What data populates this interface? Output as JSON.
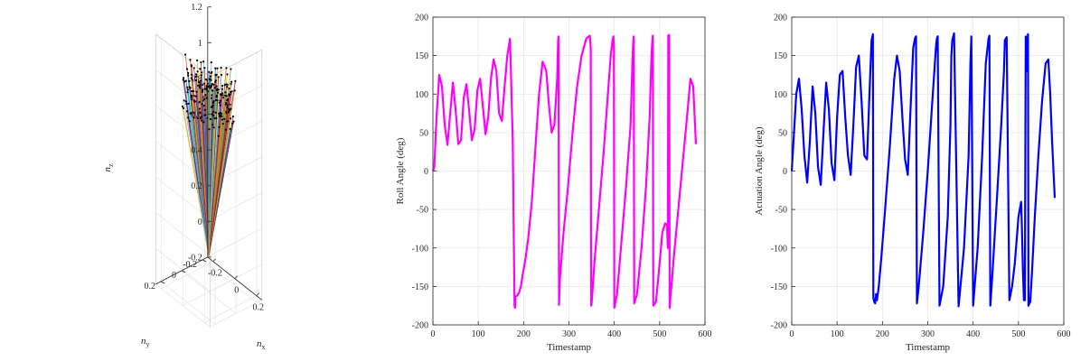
{
  "chart_data": [
    {
      "type": "line",
      "subtype": "3d-fan",
      "xlabel": "n_x",
      "ylabel": "n_y",
      "zlabel": "n_z",
      "xticks": [
        "-0.2",
        "0",
        "0.2"
      ],
      "yticks": [
        "-0.2",
        "0",
        "0.2"
      ],
      "zticks": [
        "-0.2",
        "0",
        "0.2",
        "0.4",
        "0.6",
        "0.8",
        "1",
        "1.2"
      ],
      "zlim": [
        -0.2,
        1.2
      ],
      "xlim": [
        -0.25,
        0.25
      ],
      "ylim": [
        -0.25,
        0.25
      ],
      "origin": [
        0,
        0,
        0
      ],
      "endpoint_marker": "black dot",
      "line_count": 220,
      "endpoint_z_range": [
        0.75,
        1.05
      ],
      "endpoint_xy_radius": 0.2,
      "grid": true
    },
    {
      "type": "line",
      "xlabel": "Timestamp",
      "ylabel": "Roll Angle (deg)",
      "xlim": [
        0,
        600
      ],
      "ylim": [
        -200,
        200
      ],
      "xticks": [
        "0",
        "100",
        "200",
        "300",
        "400",
        "500",
        "600"
      ],
      "yticks": [
        "-200",
        "-150",
        "-100",
        "-50",
        "0",
        "50",
        "100",
        "150",
        "200"
      ],
      "color": "#ff00ff",
      "grid": true,
      "series": [
        {
          "x": [
            0,
            3,
            8,
            14,
            20,
            26,
            32,
            38,
            44,
            50,
            56,
            62,
            68,
            74,
            80,
            86,
            92,
            98,
            104,
            110,
            116,
            122,
            128,
            134,
            140,
            146,
            152,
            158,
            164,
            170,
            176,
            180,
            181,
            182,
            186,
            190,
            194,
            198,
            204,
            210,
            218,
            226,
            234,
            242,
            250,
            256,
            262,
            268,
            274,
            276,
            277,
            278,
            280,
            288,
            298,
            308,
            318,
            328,
            338,
            346,
            348,
            349,
            350,
            356,
            366,
            376,
            386,
            392,
            396,
            398,
            399,
            400,
            406,
            416,
            426,
            436,
            440,
            442,
            443,
            444,
            450,
            460,
            470,
            478,
            482,
            484,
            485,
            486,
            492,
            500,
            506,
            512,
            516,
            518,
            519,
            520,
            521,
            522,
            523,
            524,
            526,
            530,
            538,
            546,
            554,
            562,
            568,
            574,
            580
          ],
          "y": [
            0,
            5,
            70,
            125,
            110,
            60,
            34,
            75,
            115,
            80,
            35,
            40,
            95,
            113,
            78,
            40,
            55,
            105,
            120,
            85,
            48,
            70,
            120,
            145,
            130,
            75,
            65,
            110,
            150,
            172,
            40,
            -175,
            -178,
            -163,
            -162,
            -158,
            -150,
            -135,
            -115,
            -88,
            -40,
            30,
            100,
            142,
            130,
            85,
            50,
            60,
            120,
            170,
            175,
            -174,
            -140,
            -80,
            -20,
            50,
            110,
            150,
            172,
            176,
            160,
            -175,
            -172,
            -120,
            -50,
            20,
            100,
            150,
            170,
            175,
            160,
            -178,
            -160,
            -90,
            -20,
            60,
            140,
            170,
            175,
            -172,
            -160,
            -100,
            -20,
            70,
            150,
            170,
            176,
            -175,
            -170,
            -120,
            -80,
            -68,
            -70,
            -100,
            176,
            177,
            176,
            -178,
            -172,
            -160,
            -150,
            -120,
            -70,
            -20,
            30,
            80,
            120,
            110,
            35
          ]
        }
      ]
    },
    {
      "type": "line",
      "xlabel": "Timestamp",
      "ylabel": "Actuation Angle (deg)",
      "xlim": [
        0,
        600
      ],
      "ylim": [
        -200,
        200
      ],
      "xticks": [
        "0",
        "100",
        "200",
        "300",
        "400",
        "500",
        "600"
      ],
      "yticks": [
        "-200",
        "-150",
        "-100",
        "-50",
        "0",
        "50",
        "100",
        "150",
        "200"
      ],
      "color": "#0000ff",
      "grid": true,
      "series": [
        {
          "x": [
            0,
            4,
            10,
            16,
            22,
            28,
            34,
            40,
            46,
            52,
            58,
            64,
            70,
            76,
            82,
            88,
            94,
            100,
            106,
            112,
            118,
            124,
            130,
            136,
            142,
            148,
            154,
            160,
            166,
            172,
            176,
            179,
            180,
            182,
            184,
            186,
            188,
            192,
            198,
            206,
            216,
            226,
            232,
            238,
            244,
            250,
            256,
            262,
            268,
            272,
            274,
            276,
            280,
            290,
            300,
            310,
            318,
            320,
            322,
            326,
            334,
            344,
            350,
            352,
            354,
            358,
            368,
            380,
            390,
            394,
            396,
            400,
            410,
            420,
            428,
            434,
            436,
            438,
            442,
            452,
            462,
            468,
            470,
            474,
            480,
            486,
            492,
            500,
            506,
            508,
            510,
            512,
            514,
            516,
            518,
            520,
            521,
            522,
            524,
            526,
            530,
            536,
            544,
            552,
            560,
            566,
            570,
            574,
            580
          ],
          "y": [
            0,
            40,
            100,
            120,
            80,
            20,
            -15,
            40,
            110,
            75,
            5,
            -18,
            50,
            115,
            80,
            10,
            -12,
            70,
            125,
            130,
            70,
            20,
            -5,
            60,
            135,
            150,
            90,
            20,
            15,
            110,
            170,
            178,
            -165,
            -170,
            -172,
            -160,
            -168,
            -150,
            -110,
            -50,
            30,
            120,
            150,
            130,
            70,
            15,
            -5,
            80,
            160,
            173,
            175,
            -172,
            -150,
            -80,
            0,
            90,
            160,
            172,
            175,
            -175,
            -150,
            -60,
            60,
            150,
            170,
            179,
            -176,
            -100,
            20,
            140,
            175,
            -175,
            -100,
            20,
            140,
            172,
            176,
            -175,
            -140,
            -40,
            60,
            130,
            170,
            174,
            -168,
            -150,
            -120,
            -60,
            -40,
            -80,
            -130,
            -168,
            -168,
            175,
            130,
            170,
            178,
            -175,
            -172,
            -170,
            -130,
            -60,
            20,
            90,
            140,
            145,
            100,
            40,
            -35
          ]
        }
      ]
    }
  ]
}
